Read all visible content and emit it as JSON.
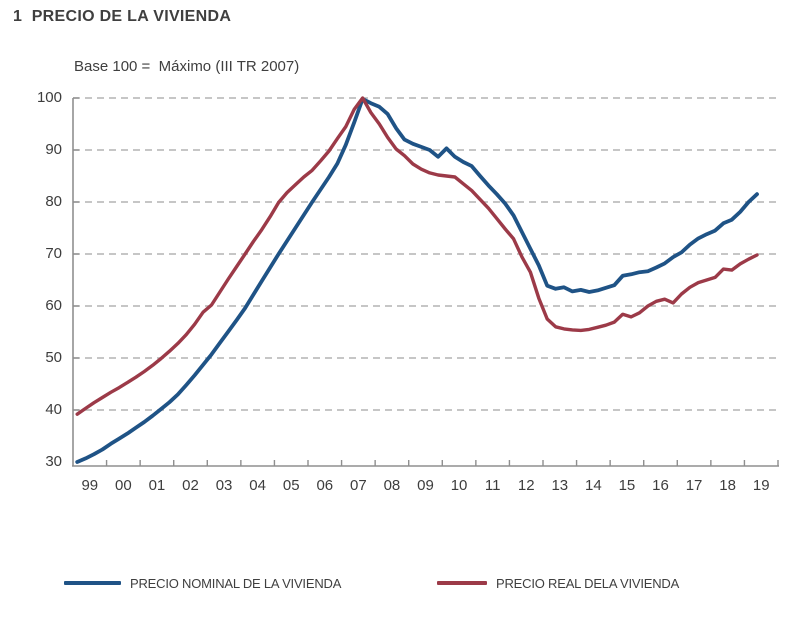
{
  "title": "1  PRECIO DE LA VIVIENDA",
  "subtitle": "Base 100 =  Máximo (III TR 2007)",
  "colors": {
    "nominal_line": "#1F5386",
    "real_line": "#9C3A48",
    "grid": "#b3b3b3",
    "axis": "#8f8f8f",
    "text": "#3d3d3d"
  },
  "legend": {
    "items": [
      {
        "label": "PRECIO NOMINAL DE LA VIVIENDA",
        "color": "#1F5386"
      },
      {
        "label": "PRECIO REAL DELA VIVIENDA",
        "color": "#9C3A48"
      }
    ]
  },
  "chart_data": {
    "type": "line",
    "title": "1  PRECIO DE LA VIVIENDA",
    "subtitle": "Base 100 =  Máximo (III TR 2007)",
    "xlabel": "",
    "ylabel": "",
    "ylim": [
      30,
      100
    ],
    "y_ticks": [
      30,
      40,
      50,
      60,
      70,
      80,
      90,
      100
    ],
    "grid": "horizontal-dashed",
    "legend_position": "bottom",
    "x_tick_labels": [
      "99",
      "00",
      "01",
      "02",
      "03",
      "04",
      "05",
      "06",
      "07",
      "08",
      "09",
      "10",
      "11",
      "12",
      "13",
      "14",
      "15",
      "16",
      "17",
      "18",
      "19"
    ],
    "x_frequency": "quarterly, 1999Q1 to 2019Q2",
    "series": [
      {
        "name": "PRECIO NOMINAL DE LA VIVIENDA",
        "color": "#1F5386",
        "values": [
          30.0,
          30.7,
          31.5,
          32.4,
          33.5,
          34.5,
          35.5,
          36.6,
          37.7,
          38.9,
          40.2,
          41.5,
          43.0,
          44.8,
          46.7,
          48.7,
          50.7,
          52.9,
          55.1,
          57.3,
          59.6,
          62.2,
          64.8,
          67.4,
          70.0,
          72.5,
          75.0,
          77.5,
          80.0,
          82.4,
          84.8,
          87.4,
          91.0,
          95.3,
          99.8,
          99.0,
          98.3,
          96.9,
          94.2,
          92.0,
          91.2,
          90.6,
          90.0,
          88.7,
          90.3,
          88.7,
          87.7,
          86.9,
          85.0,
          83.2,
          81.5,
          79.7,
          77.4,
          74.2,
          71.0,
          67.8,
          63.9,
          63.3,
          63.6,
          62.8,
          63.1,
          62.7,
          63.0,
          63.5,
          64.0,
          65.8,
          66.1,
          66.5,
          66.7,
          67.4,
          68.2,
          69.4,
          70.3,
          71.8,
          73.0,
          73.8,
          74.5,
          75.9,
          76.6,
          78.1,
          80.0,
          81.5
        ]
      },
      {
        "name": "PRECIO REAL DELA VIVIENDA",
        "color": "#9C3A48",
        "values": [
          39.2,
          40.3,
          41.4,
          42.4,
          43.4,
          44.3,
          45.3,
          46.3,
          47.4,
          48.6,
          49.9,
          51.3,
          52.8,
          54.5,
          56.5,
          58.8,
          60.2,
          62.7,
          65.2,
          67.6,
          70.0,
          72.4,
          74.7,
          77.2,
          79.9,
          81.8,
          83.3,
          84.8,
          86.1,
          87.9,
          89.8,
          92.2,
          94.5,
          97.8,
          100.0,
          97.2,
          95.0,
          92.4,
          90.2,
          88.9,
          87.3,
          86.3,
          85.6,
          85.2,
          85.0,
          84.8,
          83.5,
          82.2,
          80.5,
          78.8,
          76.8,
          74.8,
          72.9,
          69.4,
          66.5,
          61.5,
          57.5,
          56.0,
          55.6,
          55.4,
          55.3,
          55.5,
          55.9,
          56.3,
          56.9,
          58.4,
          57.9,
          58.7,
          60.0,
          60.9,
          61.3,
          60.6,
          62.3,
          63.6,
          64.5,
          65.0,
          65.5,
          67.1,
          66.9,
          68.1,
          69.0,
          69.8
        ]
      }
    ]
  }
}
